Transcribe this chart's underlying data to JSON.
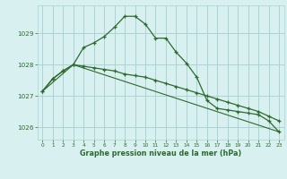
{
  "line1": {
    "x": [
      0,
      1,
      2,
      3,
      4,
      5,
      6,
      7,
      8,
      9,
      10,
      11,
      12,
      13,
      14,
      15,
      16,
      17,
      18,
      19,
      20,
      21,
      22,
      23
    ],
    "y": [
      1027.15,
      1027.55,
      1027.8,
      1028.0,
      1028.55,
      1028.7,
      1028.9,
      1029.2,
      1029.55,
      1029.55,
      1029.3,
      1028.85,
      1028.85,
      1028.4,
      1028.05,
      1027.6,
      1026.85,
      1026.6,
      1026.55,
      1026.5,
      1026.45,
      1026.4,
      1026.2,
      1025.85
    ]
  },
  "line2": {
    "x": [
      0,
      1,
      2,
      3,
      4,
      5,
      6,
      7,
      8,
      9,
      10,
      11,
      12,
      13,
      14,
      15,
      16,
      17,
      18,
      19,
      20,
      21,
      22,
      23
    ],
    "y": [
      1027.15,
      1027.55,
      1027.8,
      1028.0,
      1027.95,
      1027.9,
      1027.85,
      1027.8,
      1027.7,
      1027.65,
      1027.6,
      1027.5,
      1027.4,
      1027.3,
      1027.2,
      1027.1,
      1027.0,
      1026.9,
      1026.8,
      1026.7,
      1026.6,
      1026.5,
      1026.35,
      1026.2
    ]
  },
  "line3": {
    "x": [
      0,
      3,
      23
    ],
    "y": [
      1027.15,
      1028.0,
      1025.85
    ]
  },
  "bg_color": "#d8f0f0",
  "grid_color": "#aad4d4",
  "line_color": "#2d6a2d",
  "xlabel": "Graphe pression niveau de la mer (hPa)",
  "ylim": [
    1025.6,
    1029.9
  ],
  "xlim": [
    -0.5,
    23.5
  ],
  "yticks": [
    1026,
    1027,
    1028,
    1029
  ],
  "xticks": [
    0,
    1,
    2,
    3,
    4,
    5,
    6,
    7,
    8,
    9,
    10,
    11,
    12,
    13,
    14,
    15,
    16,
    17,
    18,
    19,
    20,
    21,
    22,
    23
  ]
}
